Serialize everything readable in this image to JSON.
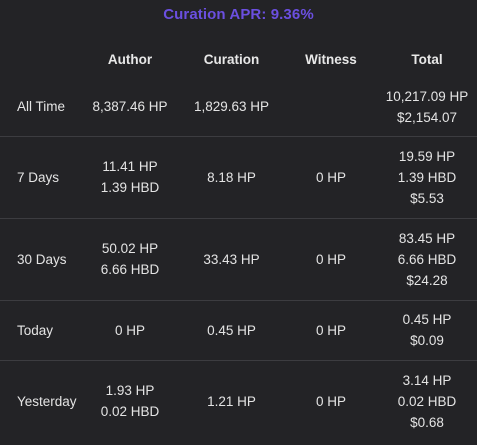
{
  "header": {
    "title": "Curation APR: 9.36%"
  },
  "table": {
    "columns": [
      "",
      "Author",
      "Curation",
      "Witness",
      "Total"
    ],
    "rows": [
      {
        "label": "All Time",
        "author": [
          "8,387.46 HP"
        ],
        "curation": [
          "1,829.63 HP"
        ],
        "witness": [
          ""
        ],
        "total": [
          "10,217.09 HP",
          "$2,154.07"
        ]
      },
      {
        "label": "7 Days",
        "author": [
          "11.41 HP",
          "1.39 HBD"
        ],
        "curation": [
          "8.18 HP"
        ],
        "witness": [
          "0 HP"
        ],
        "total": [
          "19.59 HP",
          "1.39 HBD",
          "$5.53"
        ]
      },
      {
        "label": "30 Days",
        "author": [
          "50.02 HP",
          "6.66 HBD"
        ],
        "curation": [
          "33.43 HP"
        ],
        "witness": [
          "0 HP"
        ],
        "total": [
          "83.45 HP",
          "6.66 HBD",
          "$24.28"
        ]
      },
      {
        "label": "Today",
        "author": [
          "0 HP"
        ],
        "curation": [
          "0.45 HP"
        ],
        "witness": [
          "0 HP"
        ],
        "total": [
          "0.45 HP",
          "$0.09"
        ]
      },
      {
        "label": "Yesterday",
        "author": [
          "1.93 HP",
          "0.02 HBD"
        ],
        "curation": [
          "1.21 HP"
        ],
        "witness": [
          "0 HP"
        ],
        "total": [
          "3.14 HP",
          "0.02 HBD",
          "$0.68"
        ]
      }
    ]
  },
  "colors": {
    "background": "#232326",
    "title": "#6b4fe0",
    "text": "#e4e4e4",
    "divider": "#3c3c40"
  }
}
